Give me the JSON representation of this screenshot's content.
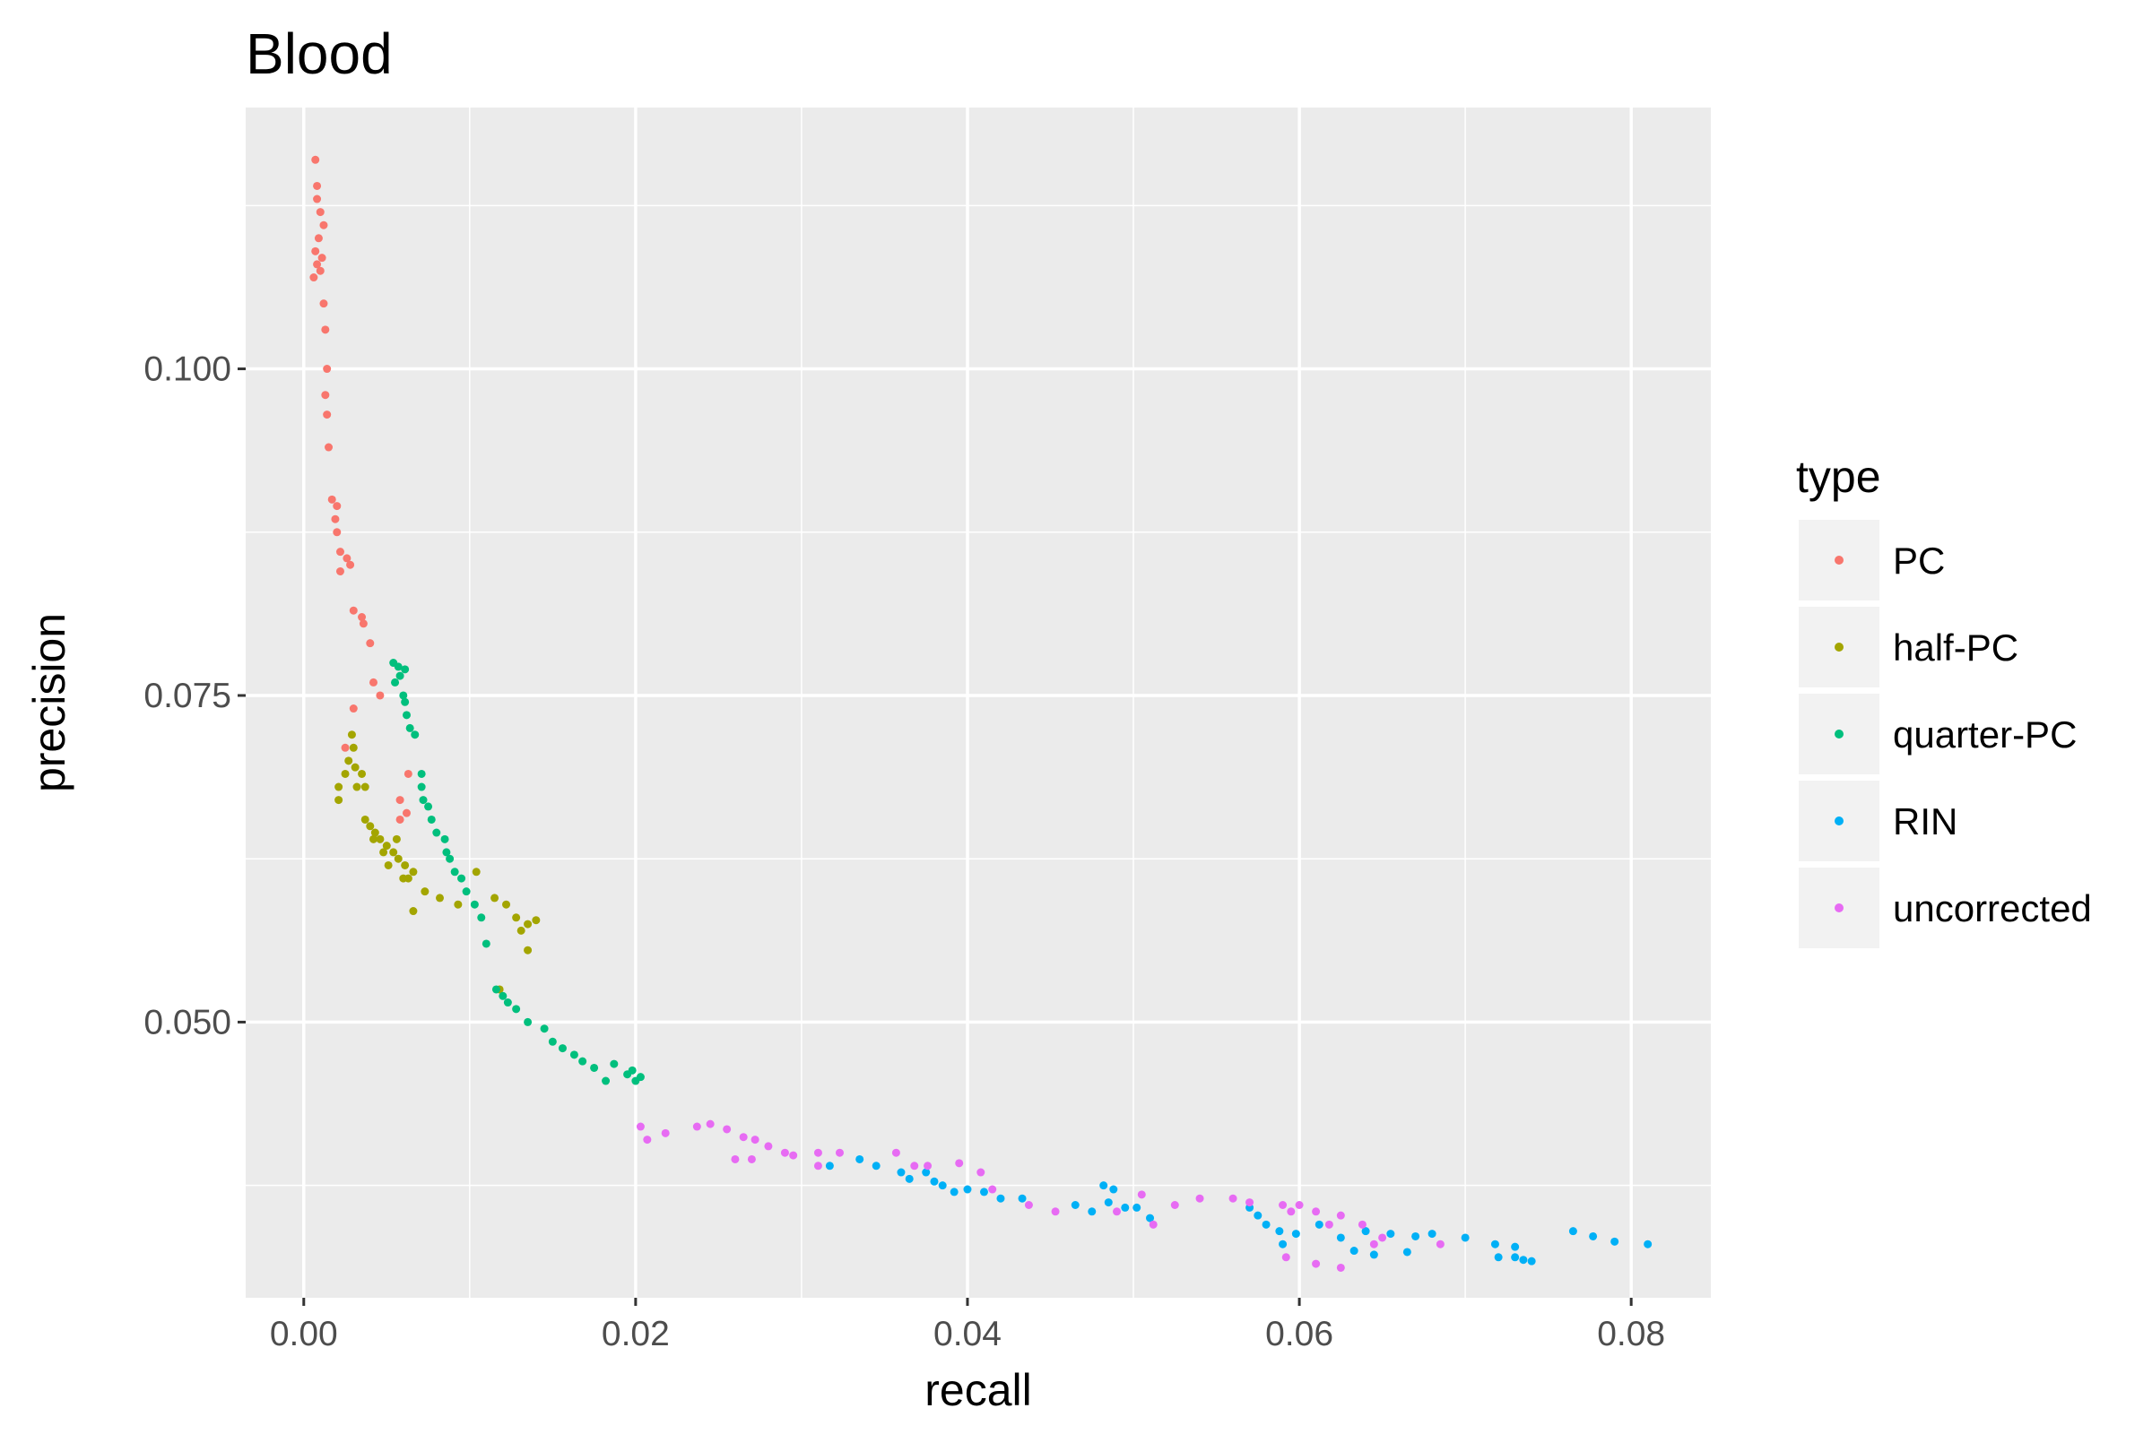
{
  "chart_data": {
    "type": "scatter",
    "title": "Blood",
    "xlabel": "recall",
    "ylabel": "precision",
    "xlim": [
      -0.0035,
      0.0848
    ],
    "ylim": [
      0.0289,
      0.12
    ],
    "x_ticks": [
      0.0,
      0.02,
      0.04,
      0.06,
      0.08
    ],
    "x_tick_labels": [
      "0.00",
      "0.02",
      "0.04",
      "0.06",
      "0.08"
    ],
    "x_minor": [
      0.01,
      0.03,
      0.05,
      0.07
    ],
    "y_ticks": [
      0.05,
      0.075,
      0.1
    ],
    "y_tick_labels": [
      "0.050",
      "0.075",
      "0.100"
    ],
    "y_minor": [
      0.0375,
      0.0625,
      0.0875,
      0.1125
    ],
    "grid": true,
    "legend": {
      "title": "type",
      "position": "right"
    },
    "series": [
      {
        "name": "PC",
        "color": "#F8766D",
        "points": [
          [
            0.0007,
            0.116
          ],
          [
            0.0008,
            0.114
          ],
          [
            0.0008,
            0.113
          ],
          [
            0.001,
            0.112
          ],
          [
            0.0012,
            0.111
          ],
          [
            0.0009,
            0.11
          ],
          [
            0.0007,
            0.109
          ],
          [
            0.0011,
            0.1085
          ],
          [
            0.0008,
            0.108
          ],
          [
            0.001,
            0.1075
          ],
          [
            0.0006,
            0.107
          ],
          [
            0.0012,
            0.105
          ],
          [
            0.0013,
            0.103
          ],
          [
            0.0014,
            0.1
          ],
          [
            0.0013,
            0.098
          ],
          [
            0.0014,
            0.0965
          ],
          [
            0.0015,
            0.094
          ],
          [
            0.0017,
            0.09
          ],
          [
            0.002,
            0.0895
          ],
          [
            0.0019,
            0.0885
          ],
          [
            0.002,
            0.0875
          ],
          [
            0.0022,
            0.086
          ],
          [
            0.0026,
            0.0855
          ],
          [
            0.0028,
            0.085
          ],
          [
            0.0022,
            0.0845
          ],
          [
            0.003,
            0.0815
          ],
          [
            0.0035,
            0.081
          ],
          [
            0.0036,
            0.0805
          ],
          [
            0.004,
            0.079
          ],
          [
            0.0042,
            0.076
          ],
          [
            0.0046,
            0.075
          ],
          [
            0.003,
            0.074
          ],
          [
            0.0025,
            0.071
          ],
          [
            0.0063,
            0.069
          ],
          [
            0.0058,
            0.067
          ],
          [
            0.0062,
            0.066
          ],
          [
            0.0058,
            0.0655
          ]
        ]
      },
      {
        "name": "half-PC",
        "color": "#A3A500",
        "points": [
          [
            0.0029,
            0.072
          ],
          [
            0.003,
            0.071
          ],
          [
            0.0027,
            0.07
          ],
          [
            0.0031,
            0.0695
          ],
          [
            0.0025,
            0.069
          ],
          [
            0.0035,
            0.069
          ],
          [
            0.0021,
            0.068
          ],
          [
            0.0032,
            0.068
          ],
          [
            0.0037,
            0.068
          ],
          [
            0.0021,
            0.067
          ],
          [
            0.0037,
            0.0655
          ],
          [
            0.004,
            0.065
          ],
          [
            0.0043,
            0.0645
          ],
          [
            0.0042,
            0.064
          ],
          [
            0.0046,
            0.064
          ],
          [
            0.005,
            0.0635
          ],
          [
            0.0054,
            0.063
          ],
          [
            0.0048,
            0.063
          ],
          [
            0.0051,
            0.062
          ],
          [
            0.0056,
            0.064
          ],
          [
            0.0057,
            0.0625
          ],
          [
            0.0061,
            0.062
          ],
          [
            0.0066,
            0.0615
          ],
          [
            0.006,
            0.061
          ],
          [
            0.0063,
            0.061
          ],
          [
            0.0073,
            0.06
          ],
          [
            0.0082,
            0.0595
          ],
          [
            0.0093,
            0.059
          ],
          [
            0.0104,
            0.0615
          ],
          [
            0.0115,
            0.0595
          ],
          [
            0.0122,
            0.059
          ],
          [
            0.0128,
            0.058
          ],
          [
            0.0135,
            0.0575
          ],
          [
            0.014,
            0.0578
          ],
          [
            0.0131,
            0.057
          ],
          [
            0.0135,
            0.0555
          ],
          [
            0.0066,
            0.0585
          ],
          [
            0.0118,
            0.0525
          ]
        ]
      },
      {
        "name": "quarter-PC",
        "color": "#00BF7D",
        "points": [
          [
            0.0054,
            0.0775
          ],
          [
            0.0057,
            0.0772
          ],
          [
            0.0061,
            0.077
          ],
          [
            0.0058,
            0.0765
          ],
          [
            0.0055,
            0.076
          ],
          [
            0.006,
            0.075
          ],
          [
            0.0061,
            0.0745
          ],
          [
            0.0062,
            0.0735
          ],
          [
            0.0064,
            0.0725
          ],
          [
            0.0067,
            0.072
          ],
          [
            0.0071,
            0.069
          ],
          [
            0.0071,
            0.068
          ],
          [
            0.0072,
            0.067
          ],
          [
            0.0075,
            0.0665
          ],
          [
            0.0077,
            0.0655
          ],
          [
            0.008,
            0.0645
          ],
          [
            0.0085,
            0.064
          ],
          [
            0.0086,
            0.063
          ],
          [
            0.0088,
            0.0625
          ],
          [
            0.0091,
            0.0615
          ],
          [
            0.0095,
            0.061
          ],
          [
            0.0098,
            0.06
          ],
          [
            0.0103,
            0.059
          ],
          [
            0.0107,
            0.058
          ],
          [
            0.011,
            0.056
          ],
          [
            0.0116,
            0.0525
          ],
          [
            0.012,
            0.052
          ],
          [
            0.0123,
            0.0515
          ],
          [
            0.0128,
            0.051
          ],
          [
            0.0135,
            0.05
          ],
          [
            0.0145,
            0.0495
          ],
          [
            0.015,
            0.0485
          ],
          [
            0.0156,
            0.048
          ],
          [
            0.0163,
            0.0475
          ],
          [
            0.0168,
            0.047
          ],
          [
            0.0175,
            0.0465
          ],
          [
            0.0182,
            0.0455
          ],
          [
            0.0187,
            0.0468
          ],
          [
            0.0195,
            0.046
          ],
          [
            0.02,
            0.0455
          ],
          [
            0.0203,
            0.0458
          ],
          [
            0.0198,
            0.0463
          ]
        ]
      },
      {
        "name": "RIN",
        "color": "#00B0F6",
        "points": [
          [
            0.0317,
            0.039
          ],
          [
            0.0335,
            0.0395
          ],
          [
            0.0345,
            0.039
          ],
          [
            0.036,
            0.0385
          ],
          [
            0.0365,
            0.038
          ],
          [
            0.0375,
            0.0385
          ],
          [
            0.038,
            0.0378
          ],
          [
            0.0385,
            0.0375
          ],
          [
            0.0392,
            0.037
          ],
          [
            0.04,
            0.0372
          ],
          [
            0.041,
            0.037
          ],
          [
            0.042,
            0.0365
          ],
          [
            0.0433,
            0.0365
          ],
          [
            0.0465,
            0.036
          ],
          [
            0.0482,
            0.0375
          ],
          [
            0.0488,
            0.0372
          ],
          [
            0.0475,
            0.0355
          ],
          [
            0.0485,
            0.0362
          ],
          [
            0.0495,
            0.0358
          ],
          [
            0.0502,
            0.0358
          ],
          [
            0.051,
            0.035
          ],
          [
            0.057,
            0.0358
          ],
          [
            0.0575,
            0.0352
          ],
          [
            0.058,
            0.0345
          ],
          [
            0.0588,
            0.034
          ],
          [
            0.0598,
            0.0338
          ],
          [
            0.0612,
            0.0345
          ],
          [
            0.0625,
            0.0335
          ],
          [
            0.064,
            0.034
          ],
          [
            0.0655,
            0.0338
          ],
          [
            0.067,
            0.0336
          ],
          [
            0.068,
            0.0338
          ],
          [
            0.07,
            0.0335
          ],
          [
            0.0718,
            0.033
          ],
          [
            0.073,
            0.0328
          ],
          [
            0.073,
            0.032
          ],
          [
            0.0735,
            0.0318
          ],
          [
            0.074,
            0.0317
          ],
          [
            0.0765,
            0.034
          ],
          [
            0.0777,
            0.0336
          ],
          [
            0.079,
            0.0332
          ],
          [
            0.081,
            0.033
          ],
          [
            0.0633,
            0.0325
          ],
          [
            0.0645,
            0.0322
          ],
          [
            0.0665,
            0.0324
          ],
          [
            0.059,
            0.033
          ],
          [
            0.072,
            0.032
          ]
        ]
      },
      {
        "name": "uncorrected",
        "color": "#E76BF3",
        "points": [
          [
            0.0203,
            0.042
          ],
          [
            0.0207,
            0.041
          ],
          [
            0.0218,
            0.0415
          ],
          [
            0.0237,
            0.042
          ],
          [
            0.0245,
            0.0422
          ],
          [
            0.0255,
            0.0418
          ],
          [
            0.0265,
            0.0412
          ],
          [
            0.0272,
            0.041
          ],
          [
            0.028,
            0.0405
          ],
          [
            0.029,
            0.04
          ],
          [
            0.026,
            0.0395
          ],
          [
            0.0295,
            0.0398
          ],
          [
            0.031,
            0.04
          ],
          [
            0.0323,
            0.04
          ],
          [
            0.031,
            0.039
          ],
          [
            0.0357,
            0.04
          ],
          [
            0.0368,
            0.039
          ],
          [
            0.0376,
            0.039
          ],
          [
            0.0395,
            0.0392
          ],
          [
            0.0408,
            0.0385
          ],
          [
            0.0415,
            0.0372
          ],
          [
            0.0437,
            0.036
          ],
          [
            0.0453,
            0.0355
          ],
          [
            0.049,
            0.0355
          ],
          [
            0.0505,
            0.0368
          ],
          [
            0.0512,
            0.0345
          ],
          [
            0.0525,
            0.036
          ],
          [
            0.054,
            0.0365
          ],
          [
            0.056,
            0.0365
          ],
          [
            0.057,
            0.0362
          ],
          [
            0.059,
            0.036
          ],
          [
            0.06,
            0.036
          ],
          [
            0.061,
            0.0355
          ],
          [
            0.0618,
            0.0345
          ],
          [
            0.0625,
            0.0352
          ],
          [
            0.065,
            0.0335
          ],
          [
            0.0645,
            0.033
          ],
          [
            0.0685,
            0.033
          ],
          [
            0.0592,
            0.032
          ],
          [
            0.061,
            0.0315
          ],
          [
            0.0625,
            0.0312
          ],
          [
            0.0595,
            0.0355
          ],
          [
            0.0638,
            0.0345
          ],
          [
            0.027,
            0.0395
          ]
        ]
      }
    ]
  }
}
